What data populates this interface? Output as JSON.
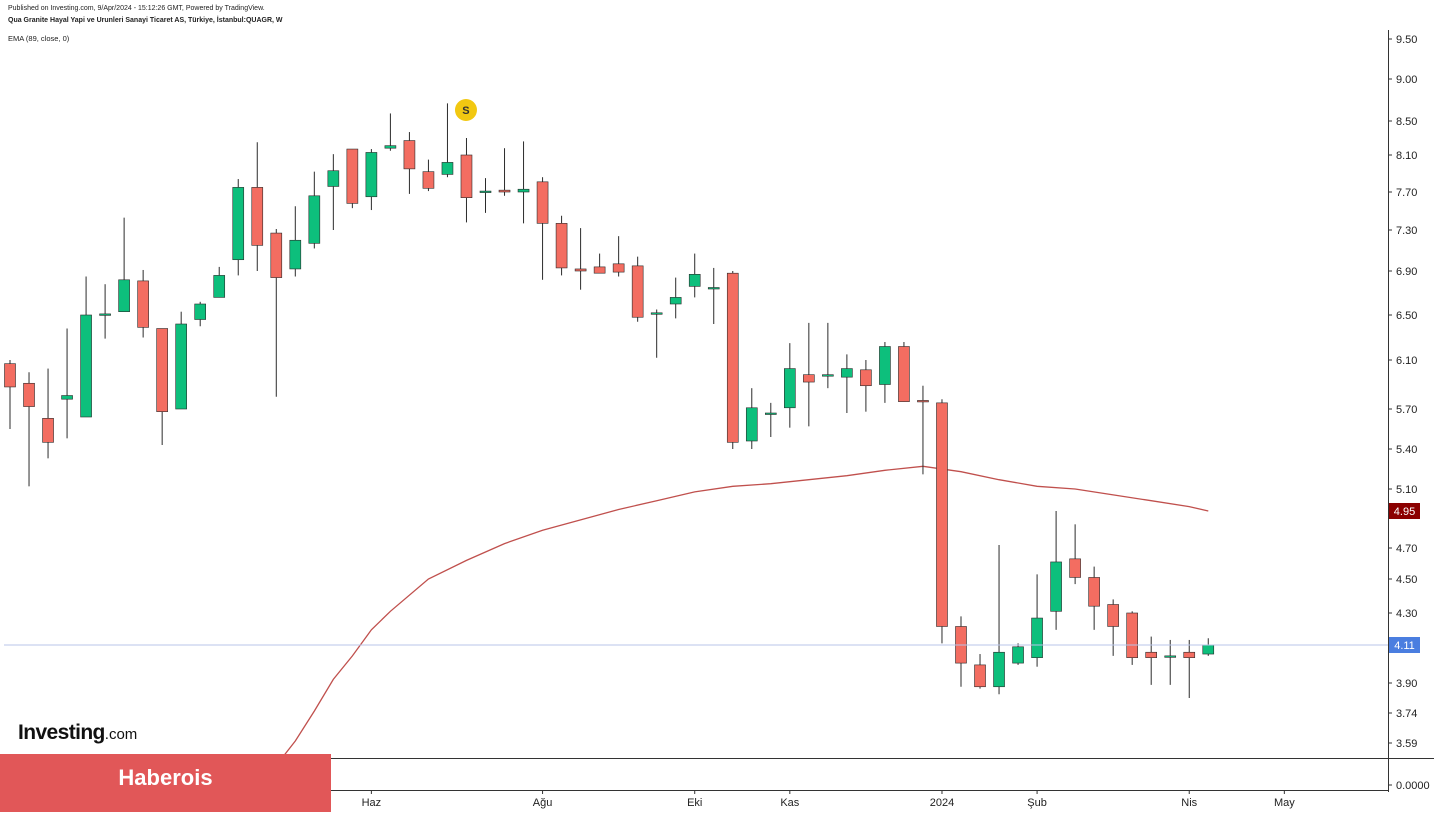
{
  "header": {
    "published": "Published on Investing.com, 9/Apr/2024 - 15:12:26 GMT, Powered by TradingView.",
    "symbol": "Qua Granite Hayal Yapi ve Urunleri Sanayi Ticaret AS, Türkiye, İstanbul:QUAGR, W",
    "indicator": "EMA (89, close, 0)"
  },
  "logo": {
    "main": "Investing",
    "suffix": ".com"
  },
  "banner": {
    "text": "Haberois"
  },
  "colors": {
    "up": "#0dbf7c",
    "down": "#f36d61",
    "wick": "#2b2b2b",
    "ema": "#c0504d",
    "ema_badge": "#8b0000",
    "price_badge": "#4a7ee0",
    "price_line": "#b8c4e8",
    "signal": "#f2c811",
    "banner": "#e15758"
  },
  "chart_data": {
    "type": "candlestick",
    "y_ticks": [
      "9.50",
      "9.00",
      "8.50",
      "8.10",
      "7.70",
      "7.30",
      "6.90",
      "6.50",
      "6.10",
      "5.70",
      "5.40",
      "5.10",
      "4.70",
      "4.50",
      "4.30",
      "3.90",
      "3.74",
      "3.59",
      "0.0000"
    ],
    "x_labels": [
      {
        "label": "Şub",
        "index": 2
      },
      {
        "label": "Nis",
        "index": 10
      },
      {
        "label": "Haz",
        "index": 19
      },
      {
        "label": "Ağu",
        "index": 28
      },
      {
        "label": "Eki",
        "index": 36
      },
      {
        "label": "Kas",
        "index": 41
      },
      {
        "label": "2024",
        "index": 49
      },
      {
        "label": "Şub",
        "index": 54
      },
      {
        "label": "Nis",
        "index": 62
      },
      {
        "label": "May",
        "index": 67
      }
    ],
    "last_price": "4.11",
    "ema_last": "4.95",
    "signal_marker": {
      "label": "S",
      "index": 24
    },
    "candles": [
      {
        "o": 6.07,
        "h": 6.1,
        "l": 5.55,
        "c": 5.88
      },
      {
        "o": 5.91,
        "h": 6.0,
        "l": 5.12,
        "c": 5.72
      },
      {
        "o": 5.63,
        "h": 6.03,
        "l": 5.33,
        "c": 5.45
      },
      {
        "o": 5.78,
        "h": 6.38,
        "l": 5.48,
        "c": 5.81
      },
      {
        "o": 5.64,
        "h": 6.85,
        "l": 5.64,
        "c": 6.5
      },
      {
        "o": 6.51,
        "h": 6.78,
        "l": 6.29,
        "c": 6.51
      },
      {
        "o": 6.53,
        "h": 7.43,
        "l": 6.53,
        "c": 6.82
      },
      {
        "o": 6.81,
        "h": 6.91,
        "l": 6.3,
        "c": 6.39
      },
      {
        "o": 6.38,
        "h": 6.38,
        "l": 5.43,
        "c": 5.68
      },
      {
        "o": 5.7,
        "h": 6.53,
        "l": 5.7,
        "c": 6.42
      },
      {
        "o": 6.46,
        "h": 6.62,
        "l": 6.4,
        "c": 6.6
      },
      {
        "o": 6.66,
        "h": 6.94,
        "l": 6.66,
        "c": 6.86
      },
      {
        "o": 7.01,
        "h": 7.84,
        "l": 6.86,
        "c": 7.75
      },
      {
        "o": 7.75,
        "h": 8.25,
        "l": 6.9,
        "c": 7.15
      },
      {
        "o": 7.27,
        "h": 7.31,
        "l": 5.8,
        "c": 6.84
      },
      {
        "o": 6.92,
        "h": 7.55,
        "l": 6.85,
        "c": 7.2
      },
      {
        "o": 7.17,
        "h": 7.92,
        "l": 7.12,
        "c": 7.66
      },
      {
        "o": 7.76,
        "h": 8.11,
        "l": 7.3,
        "c": 7.93
      },
      {
        "o": 8.17,
        "h": 8.17,
        "l": 7.53,
        "c": 7.58
      },
      {
        "o": 7.65,
        "h": 8.17,
        "l": 7.51,
        "c": 8.13
      },
      {
        "o": 8.18,
        "h": 8.59,
        "l": 8.15,
        "c": 8.21
      },
      {
        "o": 8.27,
        "h": 8.37,
        "l": 7.68,
        "c": 7.95
      },
      {
        "o": 7.92,
        "h": 8.05,
        "l": 7.71,
        "c": 7.74
      },
      {
        "o": 7.89,
        "h": 8.71,
        "l": 7.86,
        "c": 8.02
      },
      {
        "o": 8.1,
        "h": 8.3,
        "l": 7.38,
        "c": 7.64
      },
      {
        "o": 7.7,
        "h": 7.85,
        "l": 7.48,
        "c": 7.71
      },
      {
        "o": 7.72,
        "h": 8.18,
        "l": 7.66,
        "c": 7.7
      },
      {
        "o": 7.7,
        "h": 8.26,
        "l": 7.37,
        "c": 7.73
      },
      {
        "o": 7.81,
        "h": 7.86,
        "l": 6.82,
        "c": 7.37
      },
      {
        "o": 7.37,
        "h": 7.45,
        "l": 6.86,
        "c": 6.93
      },
      {
        "o": 6.92,
        "h": 7.32,
        "l": 6.73,
        "c": 6.9
      },
      {
        "o": 6.94,
        "h": 7.07,
        "l": 6.88,
        "c": 6.88
      },
      {
        "o": 6.97,
        "h": 7.24,
        "l": 6.85,
        "c": 6.89
      },
      {
        "o": 6.95,
        "h": 7.04,
        "l": 6.44,
        "c": 6.48
      },
      {
        "o": 6.52,
        "h": 6.55,
        "l": 6.12,
        "c": 6.52
      },
      {
        "o": 6.6,
        "h": 6.84,
        "l": 6.47,
        "c": 6.66
      },
      {
        "o": 6.76,
        "h": 7.07,
        "l": 6.66,
        "c": 6.87
      },
      {
        "o": 6.75,
        "h": 6.93,
        "l": 6.42,
        "c": 6.75
      },
      {
        "o": 6.88,
        "h": 6.9,
        "l": 5.4,
        "c": 5.45
      },
      {
        "o": 5.46,
        "h": 5.87,
        "l": 5.4,
        "c": 5.71
      },
      {
        "o": 5.67,
        "h": 5.75,
        "l": 5.49,
        "c": 5.67
      },
      {
        "o": 5.71,
        "h": 6.25,
        "l": 5.56,
        "c": 6.03
      },
      {
        "o": 5.98,
        "h": 6.43,
        "l": 5.57,
        "c": 5.92
      },
      {
        "o": 5.98,
        "h": 6.43,
        "l": 5.87,
        "c": 5.98
      },
      {
        "o": 5.96,
        "h": 6.15,
        "l": 5.67,
        "c": 6.03
      },
      {
        "o": 6.02,
        "h": 6.1,
        "l": 5.68,
        "c": 5.89
      },
      {
        "o": 5.9,
        "h": 6.26,
        "l": 5.75,
        "c": 6.22
      },
      {
        "o": 6.22,
        "h": 6.26,
        "l": 5.76,
        "c": 5.76
      },
      {
        "o": 5.77,
        "h": 5.89,
        "l": 5.21,
        "c": 5.76
      },
      {
        "o": 5.75,
        "h": 5.78,
        "l": 4.12,
        "c": 4.22
      },
      {
        "o": 4.22,
        "h": 4.28,
        "l": 3.88,
        "c": 4.01
      },
      {
        "o": 4.0,
        "h": 4.06,
        "l": 3.87,
        "c": 3.88
      },
      {
        "o": 3.88,
        "h": 4.72,
        "l": 3.84,
        "c": 4.07
      },
      {
        "o": 4.01,
        "h": 4.12,
        "l": 4.0,
        "c": 4.1
      },
      {
        "o": 4.04,
        "h": 4.53,
        "l": 3.99,
        "c": 4.27
      },
      {
        "o": 4.31,
        "h": 4.95,
        "l": 4.2,
        "c": 4.61
      },
      {
        "o": 4.63,
        "h": 4.86,
        "l": 4.47,
        "c": 4.51
      },
      {
        "o": 4.51,
        "h": 4.58,
        "l": 4.2,
        "c": 4.34
      },
      {
        "o": 4.35,
        "h": 4.38,
        "l": 4.05,
        "c": 4.22
      },
      {
        "o": 4.3,
        "h": 4.31,
        "l": 4.0,
        "c": 4.04
      },
      {
        "o": 4.07,
        "h": 4.16,
        "l": 3.89,
        "c": 4.04
      },
      {
        "o": 4.05,
        "h": 4.14,
        "l": 3.89,
        "c": 4.05
      },
      {
        "o": 4.07,
        "h": 4.14,
        "l": 3.82,
        "c": 4.04
      },
      {
        "o": 4.06,
        "h": 4.15,
        "l": 4.05,
        "c": 4.11
      }
    ],
    "ema": [
      {
        "index": 13,
        "value": 3.36
      },
      {
        "index": 14,
        "value": 3.46
      },
      {
        "index": 15,
        "value": 3.6
      },
      {
        "index": 16,
        "value": 3.75
      },
      {
        "index": 17,
        "value": 3.92
      },
      {
        "index": 18,
        "value": 4.05
      },
      {
        "index": 19,
        "value": 4.2
      },
      {
        "index": 20,
        "value": 4.31
      },
      {
        "index": 22,
        "value": 4.5
      },
      {
        "index": 24,
        "value": 4.62
      },
      {
        "index": 26,
        "value": 4.73
      },
      {
        "index": 28,
        "value": 4.82
      },
      {
        "index": 30,
        "value": 4.89
      },
      {
        "index": 32,
        "value": 4.96
      },
      {
        "index": 34,
        "value": 5.02
      },
      {
        "index": 36,
        "value": 5.08
      },
      {
        "index": 38,
        "value": 5.12
      },
      {
        "index": 40,
        "value": 5.14
      },
      {
        "index": 42,
        "value": 5.17
      },
      {
        "index": 44,
        "value": 5.2
      },
      {
        "index": 46,
        "value": 5.24
      },
      {
        "index": 48,
        "value": 5.27
      },
      {
        "index": 50,
        "value": 5.23
      },
      {
        "index": 52,
        "value": 5.17
      },
      {
        "index": 54,
        "value": 5.12
      },
      {
        "index": 56,
        "value": 5.1
      },
      {
        "index": 58,
        "value": 5.06
      },
      {
        "index": 60,
        "value": 5.02
      },
      {
        "index": 62,
        "value": 4.98
      },
      {
        "index": 63,
        "value": 4.95
      }
    ]
  }
}
